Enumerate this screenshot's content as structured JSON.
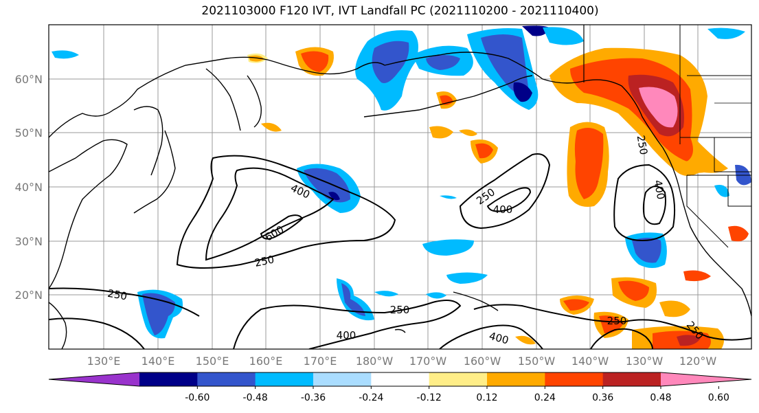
{
  "title": "2021103000 F120 IVT, IVT Landfall PC (2021110200 - 2021110400)",
  "lat_labels": [
    "60°N",
    "50°N",
    "40°N",
    "30°N",
    "20°N"
  ],
  "lon_labels": [
    "130°E",
    "140°E",
    "150°E",
    "160°E",
    "170°E",
    "180°W",
    "170°W",
    "160°W",
    "150°W",
    "140°W",
    "130°W",
    "120°W"
  ],
  "colorbar": {
    "colors": [
      "#9933cc",
      "#000088",
      "#3355cc",
      "#00bbff",
      "#aaddff",
      "#ffffff",
      "#ffee88",
      "#ffaa00",
      "#ff4400",
      "#bb2222",
      "#ff88bb"
    ],
    "tick_labels": [
      "-0.60",
      "-0.48",
      "-0.36",
      "-0.24",
      "-0.12",
      "0.12",
      "0.24",
      "0.36",
      "0.48",
      "0.60"
    ]
  },
  "contour_labels": [
    "400",
    "600",
    "250",
    "250",
    "400",
    "250",
    "400",
    "250",
    "250",
    "400",
    "250",
    "250",
    "400"
  ]
}
